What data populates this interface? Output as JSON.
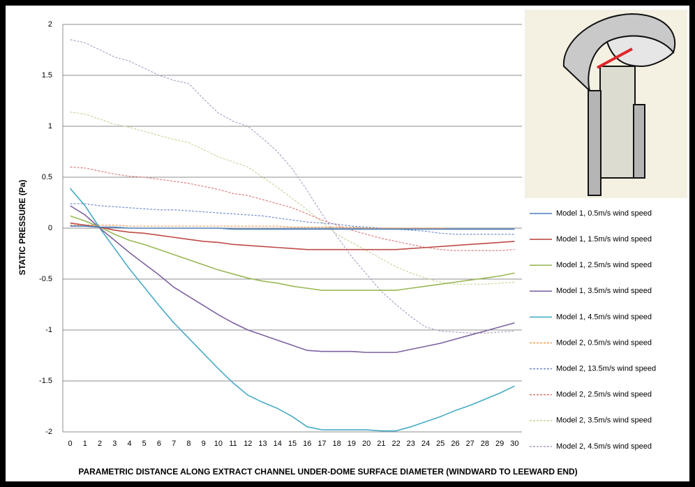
{
  "chart_data": {
    "type": "line",
    "y_label": "STATIC PRESSURE (Pa)",
    "x_label": "PARAMETRIC DISTANCE ALONG  EXTRACT  CHANNEL  UNDER-DOME SURFACE DIAMETER (WINDWARD TO LEEWARD END)",
    "x": [
      0,
      1,
      2,
      3,
      4,
      5,
      6,
      7,
      8,
      9,
      10,
      11,
      12,
      13,
      14,
      15,
      16,
      17,
      18,
      19,
      20,
      21,
      22,
      23,
      24,
      25,
      26,
      27,
      28,
      29,
      30
    ],
    "xlim": [
      -0.5,
      30.5
    ],
    "xticks": [
      0,
      1,
      2,
      3,
      4,
      5,
      6,
      7,
      8,
      9,
      10,
      11,
      12,
      13,
      14,
      15,
      16,
      17,
      18,
      19,
      20,
      21,
      22,
      23,
      24,
      25,
      26,
      27,
      28,
      29,
      30
    ],
    "ylim": [
      -2,
      2
    ],
    "yticks": [
      2,
      1.5,
      1,
      0.5,
      0,
      -0.5,
      -1,
      -1.5,
      -2
    ],
    "grid": true,
    "legend": "right",
    "series": [
      {
        "name": "Model 1, 0.5m/s wind speed",
        "color": "#4a7ebb",
        "style": "solid",
        "values": [
          0.02,
          0.02,
          0.01,
          0.01,
          0,
          0,
          0,
          0,
          0,
          0,
          0,
          -0.01,
          -0.01,
          -0.01,
          -0.01,
          -0.01,
          -0.01,
          -0.01,
          -0.01,
          -0.01,
          -0.01,
          -0.01,
          -0.01,
          -0.01,
          -0.01,
          -0.01,
          -0.01,
          -0.01,
          -0.01,
          -0.01,
          -0.01
        ]
      },
      {
        "name": "Model 1, 1.5m/s wind speed",
        "color": "#be4b48",
        "style": "solid",
        "values": [
          0.05,
          0.03,
          0.01,
          -0.02,
          -0.04,
          -0.05,
          -0.07,
          -0.09,
          -0.11,
          -0.13,
          -0.14,
          -0.16,
          -0.17,
          -0.18,
          -0.19,
          -0.2,
          -0.21,
          -0.21,
          -0.21,
          -0.21,
          -0.21,
          -0.21,
          -0.21,
          -0.2,
          -0.19,
          -0.18,
          -0.17,
          -0.16,
          -0.15,
          -0.14,
          -0.13
        ]
      },
      {
        "name": "Model 1, 2.5m/s wind speed",
        "color": "#98b954",
        "style": "solid",
        "values": [
          0.12,
          0.07,
          0.01,
          -0.06,
          -0.12,
          -0.16,
          -0.21,
          -0.26,
          -0.31,
          -0.36,
          -0.41,
          -0.45,
          -0.49,
          -0.52,
          -0.54,
          -0.57,
          -0.59,
          -0.61,
          -0.61,
          -0.61,
          -0.61,
          -0.61,
          -0.61,
          -0.59,
          -0.57,
          -0.55,
          -0.53,
          -0.51,
          -0.49,
          -0.47,
          -0.44
        ]
      },
      {
        "name": "Model 1, 3.5m/s wind speed",
        "color": "#7d60a0",
        "style": "solid",
        "values": [
          0.22,
          0.13,
          0,
          -0.12,
          -0.24,
          -0.35,
          -0.46,
          -0.58,
          -0.67,
          -0.76,
          -0.85,
          -0.93,
          -1,
          -1.05,
          -1.1,
          -1.15,
          -1.2,
          -1.21,
          -1.21,
          -1.21,
          -1.22,
          -1.22,
          -1.22,
          -1.19,
          -1.16,
          -1.13,
          -1.09,
          -1.05,
          -1.01,
          -0.97,
          -0.93
        ]
      },
      {
        "name": "Model 1, 4.5m/s wind speed",
        "color": "#46aac5",
        "style": "solid",
        "values": [
          0.39,
          0.22,
          0,
          -0.2,
          -0.4,
          -0.58,
          -0.76,
          -0.93,
          -1.08,
          -1.23,
          -1.38,
          -1.52,
          -1.64,
          -1.71,
          -1.77,
          -1.85,
          -1.95,
          -1.98,
          -1.98,
          -1.98,
          -1.98,
          -1.99,
          -1.99,
          -1.95,
          -1.9,
          -1.85,
          -1.79,
          -1.74,
          -1.68,
          -1.62,
          -1.55
        ]
      },
      {
        "name": "Model 2, 0.5m/s wind speed",
        "color": "#f79646",
        "style": "dashed",
        "values": [
          0.03,
          0.03,
          0.03,
          0.03,
          0.02,
          0.02,
          0.02,
          0.02,
          0.02,
          0.02,
          0.02,
          0.02,
          0.02,
          0.02,
          0.02,
          0.01,
          0.01,
          0.01,
          0.01,
          0.01,
          0,
          0,
          0,
          0,
          0,
          0,
          -0.01,
          -0.01,
          -0.01,
          -0.01,
          -0.01
        ]
      },
      {
        "name": "Model 2, 13.5m/s wind speed",
        "color": "#6e8fd0",
        "style": "dashed",
        "values": [
          0.24,
          0.24,
          0.22,
          0.21,
          0.2,
          0.19,
          0.18,
          0.18,
          0.17,
          0.16,
          0.15,
          0.14,
          0.13,
          0.12,
          0.1,
          0.08,
          0.06,
          0.05,
          0.04,
          0.02,
          0.01,
          0,
          -0.01,
          -0.02,
          -0.03,
          -0.05,
          -0.06,
          -0.06,
          -0.06,
          -0.06,
          -0.06
        ]
      },
      {
        "name": "Model 2, 2.5m/s wind speed",
        "color": "#e07b7b",
        "style": "dashed",
        "values": [
          0.6,
          0.59,
          0.56,
          0.53,
          0.51,
          0.5,
          0.48,
          0.46,
          0.44,
          0.41,
          0.38,
          0.34,
          0.32,
          0.28,
          0.24,
          0.2,
          0.14,
          0.08,
          0.03,
          -0.02,
          -0.06,
          -0.1,
          -0.13,
          -0.16,
          -0.19,
          -0.21,
          -0.22,
          -0.22,
          -0.22,
          -0.22,
          -0.21
        ]
      },
      {
        "name": "Model 2, 3.5m/s wind speed",
        "color": "#c4d79b",
        "style": "dashed",
        "values": [
          1.14,
          1.12,
          1.07,
          1.02,
          0.99,
          0.95,
          0.91,
          0.87,
          0.84,
          0.77,
          0.7,
          0.65,
          0.6,
          0.5,
          0.4,
          0.29,
          0.18,
          0.06,
          -0.06,
          -0.14,
          -0.22,
          -0.3,
          -0.38,
          -0.44,
          -0.49,
          -0.53,
          -0.55,
          -0.55,
          -0.55,
          -0.54,
          -0.53
        ]
      },
      {
        "name": "Model 2, 4.5m/s wind speed",
        "color": "#b3a2c7",
        "style": "dashed",
        "values": [
          1.85,
          1.82,
          1.75,
          1.68,
          1.64,
          1.57,
          1.5,
          1.45,
          1.42,
          1.27,
          1.13,
          1.05,
          1,
          0.88,
          0.75,
          0.58,
          0.37,
          0.14,
          -0.08,
          -0.28,
          -0.45,
          -0.62,
          -0.75,
          -0.87,
          -0.97,
          -1.01,
          -1.02,
          -1.03,
          -1.03,
          -1.02,
          -1.01
        ]
      }
    ]
  }
}
